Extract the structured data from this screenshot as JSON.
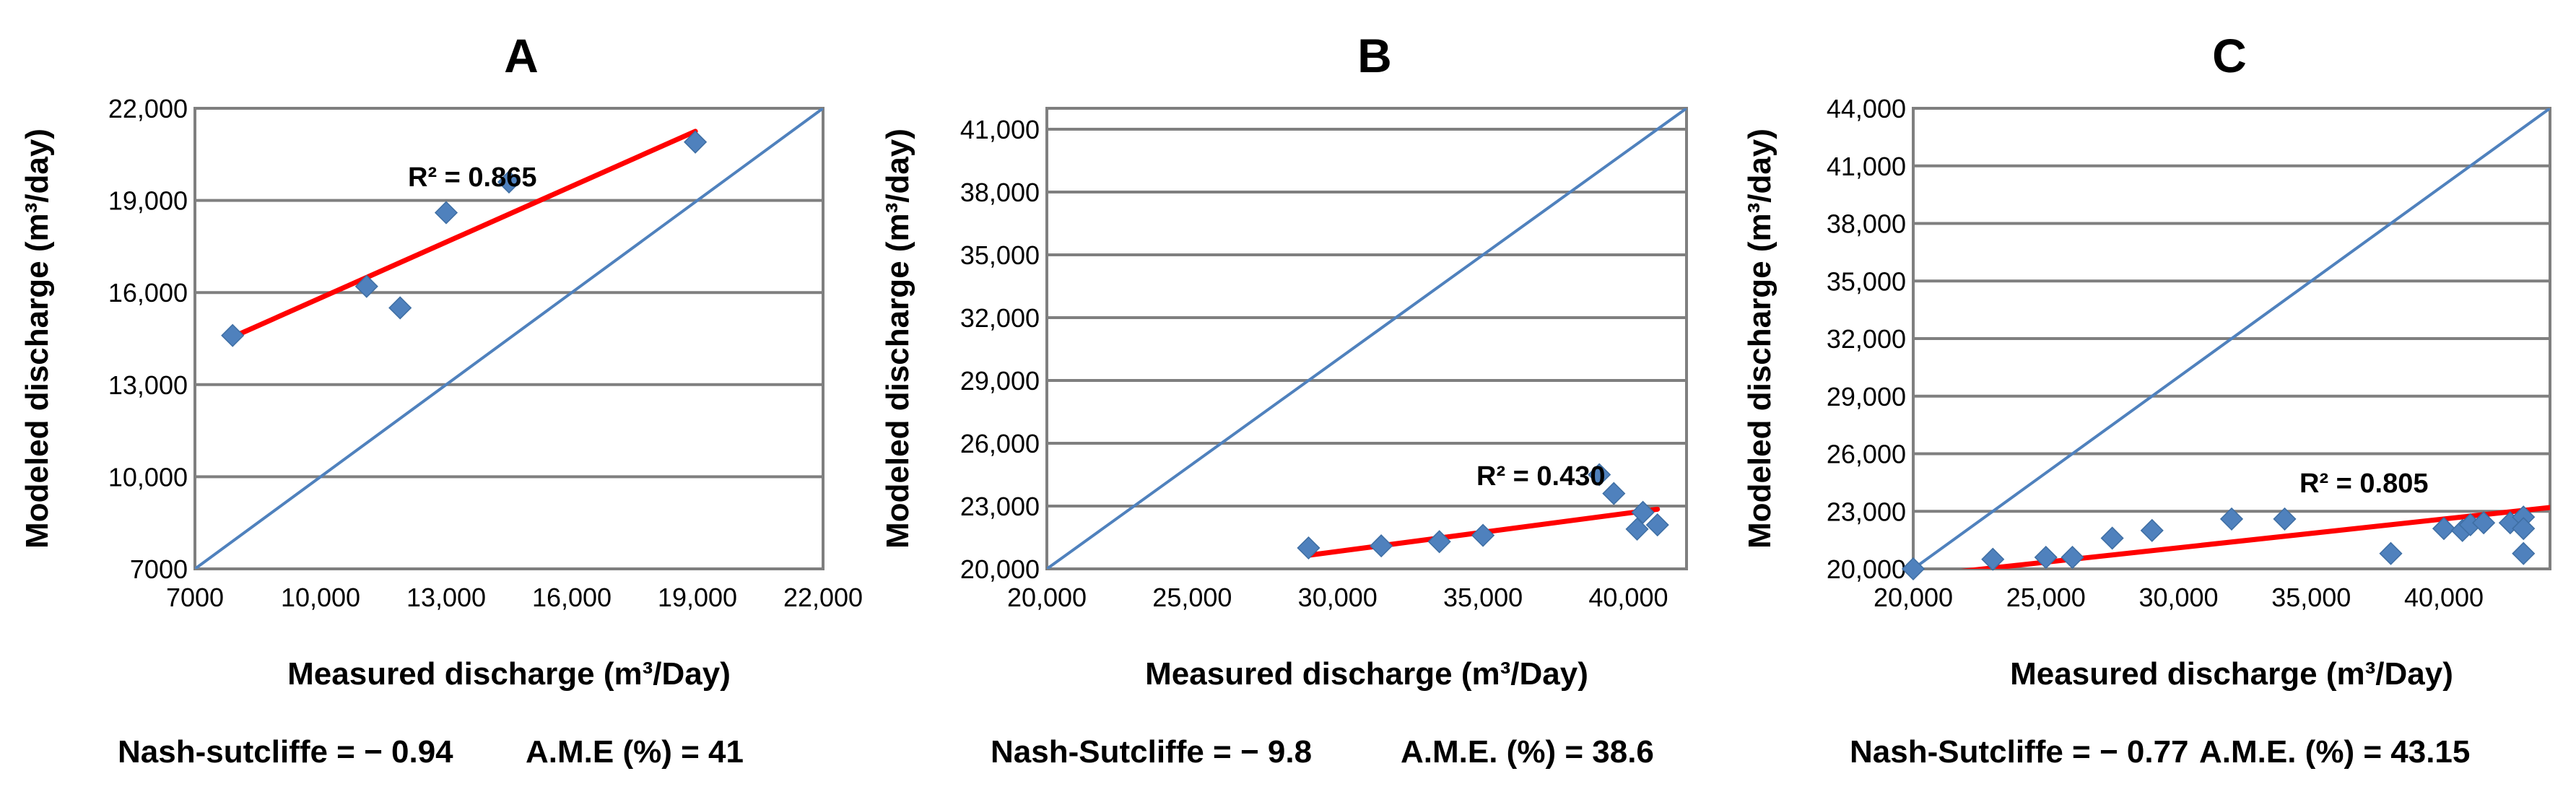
{
  "chart_data": [
    {
      "type": "scatter",
      "panel": "A",
      "title": "A",
      "xlabel": "Measured discharge (m³/Day)",
      "ylabel": "Modeled discharge (m³/day)",
      "xlim": [
        7000,
        22000
      ],
      "ylim": [
        7000,
        22000
      ],
      "xticks": [
        7000,
        10000,
        13000,
        16000,
        19000,
        22000
      ],
      "xtick_labels": [
        "7000",
        "10,000",
        "13,000",
        "16,000",
        "19,000",
        "22,000"
      ],
      "yticks": [
        7000,
        10000,
        13000,
        16000,
        19000,
        22000
      ],
      "ytick_labels": [
        "7000",
        "10,000",
        "13,000",
        "16,000",
        "19,000",
        "22,000"
      ],
      "grid": "horizontal",
      "series": [
        {
          "name": "Observed vs modeled",
          "x": [
            7900,
            11100,
            11900,
            13000,
            14500,
            18950
          ],
          "y": [
            14600,
            16200,
            15500,
            18600,
            19600,
            20900
          ]
        },
        {
          "name": "1:1 line",
          "x": [
            7000,
            22000
          ],
          "y": [
            7000,
            22000
          ]
        },
        {
          "name": "Linear trend",
          "x": [
            7900,
            18950
          ],
          "y": [
            14550,
            21250
          ]
        }
      ],
      "annotation": "R² = 0.865",
      "footer": {
        "ns_label": "Nash-sutcliffe = − 0.94",
        "ame_label": "A.M.E (%) = 41"
      }
    },
    {
      "type": "scatter",
      "panel": "B",
      "title": "B",
      "xlabel": "Measured discharge (m³/Day)",
      "ylabel": "Modeled discharge (m³/day)",
      "xlim": [
        20000,
        42000
      ],
      "ylim": [
        20000,
        42000
      ],
      "xticks": [
        20000,
        25000,
        30000,
        35000,
        40000
      ],
      "xtick_labels": [
        "20,000",
        "25,000",
        "30,000",
        "35,000",
        "40,000"
      ],
      "yticks": [
        20000,
        23000,
        26000,
        29000,
        32000,
        35000,
        38000,
        41000
      ],
      "ytick_labels": [
        "20,000",
        "23,000",
        "26,000",
        "29,000",
        "32,000",
        "35,000",
        "38,000",
        "41,000"
      ],
      "grid": "horizontal",
      "series": [
        {
          "name": "Observed vs modeled",
          "x": [
            29000,
            31500,
            33500,
            35000,
            39000,
            39500,
            40300,
            40500,
            41000
          ],
          "y": [
            21000,
            21100,
            21300,
            21600,
            24500,
            23600,
            21900,
            22700,
            22100
          ]
        },
        {
          "name": "1:1 line",
          "x": [
            20000,
            42000
          ],
          "y": [
            20000,
            42000
          ]
        },
        {
          "name": "Linear trend",
          "x": [
            29000,
            41000
          ],
          "y": [
            20650,
            22850
          ]
        }
      ],
      "annotation": "R² = 0.430",
      "footer": {
        "ns_label": "Nash-Sutcliffe = − 9.8",
        "ame_label": "A.M.E. (%) = 38.6"
      }
    },
    {
      "type": "scatter",
      "panel": "C",
      "title": "C",
      "xlabel": "Measured discharge (m³/Day)",
      "ylabel": "Modeled discharge (m³/day)",
      "xlim": [
        20000,
        44000
      ],
      "ylim": [
        20000,
        44000
      ],
      "xticks": [
        20000,
        25000,
        30000,
        35000,
        40000
      ],
      "xtick_labels": [
        "20,000",
        "25,000",
        "30,000",
        "35,000",
        "40,000"
      ],
      "yticks": [
        20000,
        23000,
        26000,
        29000,
        32000,
        35000,
        38000,
        41000,
        44000
      ],
      "ytick_labels": [
        "20,000",
        "23,000",
        "26,000",
        "29,000",
        "32,000",
        "35,000",
        "38,000",
        "41,000",
        "44,000"
      ],
      "grid": "horizontal",
      "series": [
        {
          "name": "Observed vs modeled",
          "x": [
            20000,
            23000,
            25000,
            26000,
            27500,
            29000,
            32000,
            34000,
            38000,
            40000,
            40700,
            41000,
            41500,
            42500,
            43000,
            43000,
            43000
          ],
          "y": [
            20000,
            20500,
            20600,
            20600,
            21600,
            22000,
            22600,
            22600,
            20800,
            22100,
            22000,
            22300,
            22400,
            22400,
            22700,
            22100,
            20800
          ]
        },
        {
          "name": "1:1 line",
          "x": [
            20000,
            44000
          ],
          "y": [
            20000,
            44000
          ]
        },
        {
          "name": "Linear trend",
          "x": [
            21000,
            44000
          ],
          "y": [
            19750,
            23200
          ]
        }
      ],
      "annotation": "R² = 0.805",
      "footer": {
        "ns_label": "Nash-Sutcliffe = − 0.77",
        "ame_label": "A.M.E. (%) = 43.15"
      }
    }
  ]
}
